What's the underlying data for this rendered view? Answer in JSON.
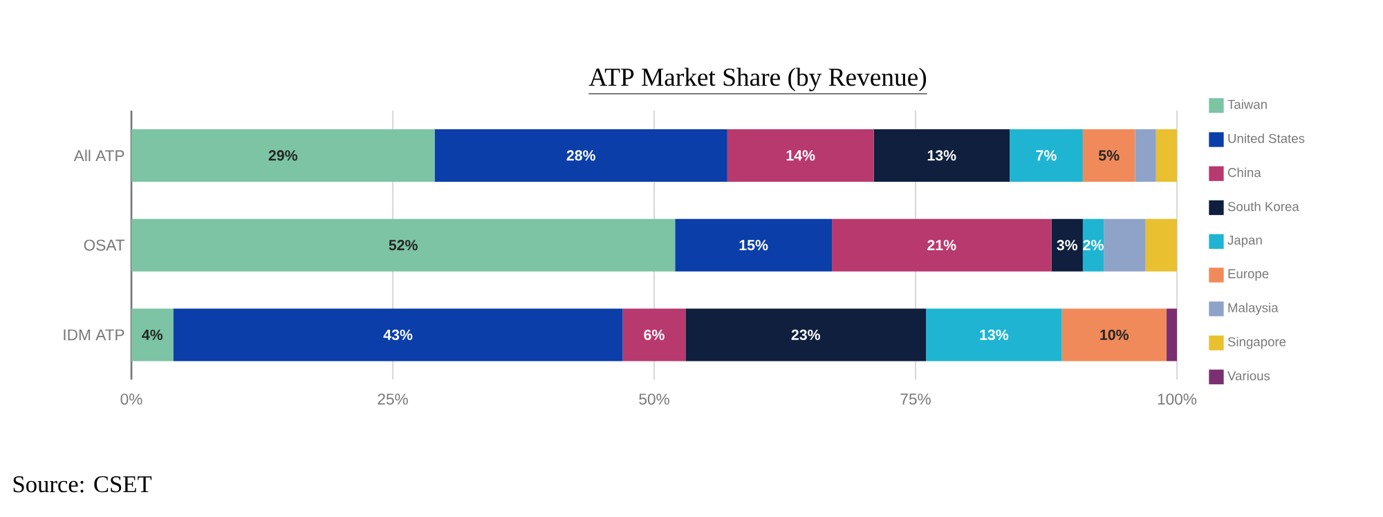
{
  "chart_data": {
    "type": "bar",
    "orientation": "horizontal",
    "stacked": true,
    "title": "ATP Market Share (by Revenue)",
    "annotations": [
      "Source: CSET"
    ],
    "categories": [
      "All ATP",
      "OSAT",
      "IDM ATP"
    ],
    "xlim": [
      0,
      100
    ],
    "xticks": [
      {
        "value": 0,
        "label": "0%"
      },
      {
        "value": 25,
        "label": "25%"
      },
      {
        "value": 50,
        "label": "50%"
      },
      {
        "value": 75,
        "label": "75%"
      },
      {
        "value": 100,
        "label": "100%"
      }
    ],
    "grid": "x",
    "legend": "right",
    "series": [
      {
        "name": "Taiwan",
        "color": "#7cc4a4",
        "values": [
          29,
          52,
          4
        ],
        "value_labels": [
          "29%",
          "52%",
          "4%"
        ]
      },
      {
        "name": "United States",
        "color": "#0b3ea8",
        "values": [
          28,
          15,
          43
        ],
        "value_labels": [
          "28%",
          "15%",
          "43%"
        ]
      },
      {
        "name": "China",
        "color": "#b8396e",
        "values": [
          14,
          21,
          6
        ],
        "value_labels": [
          "14%",
          "21%",
          "6%"
        ]
      },
      {
        "name": "South Korea",
        "color": "#0f1f3d",
        "values": [
          13,
          3,
          23
        ],
        "value_labels": [
          "13%",
          "3%",
          "23%"
        ]
      },
      {
        "name": "Japan",
        "color": "#1fb5d2",
        "values": [
          7,
          2,
          13
        ],
        "value_labels": [
          "7%",
          "2%",
          "13%"
        ]
      },
      {
        "name": "Europe",
        "color": "#f08a5a",
        "values": [
          5,
          0,
          10
        ],
        "value_labels": [
          "5%",
          null,
          "10%"
        ]
      },
      {
        "name": "Malaysia",
        "color": "#8fa3c8",
        "values": [
          2,
          4,
          0
        ],
        "value_labels": [
          null,
          null,
          null
        ]
      },
      {
        "name": "Singapore",
        "color": "#e8c030",
        "values": [
          2,
          3,
          0
        ],
        "value_labels": [
          null,
          null,
          null
        ]
      },
      {
        "name": "Various",
        "color": "#7a3070",
        "values": [
          0,
          0,
          1
        ],
        "value_labels": [
          null,
          null,
          null
        ]
      }
    ]
  }
}
